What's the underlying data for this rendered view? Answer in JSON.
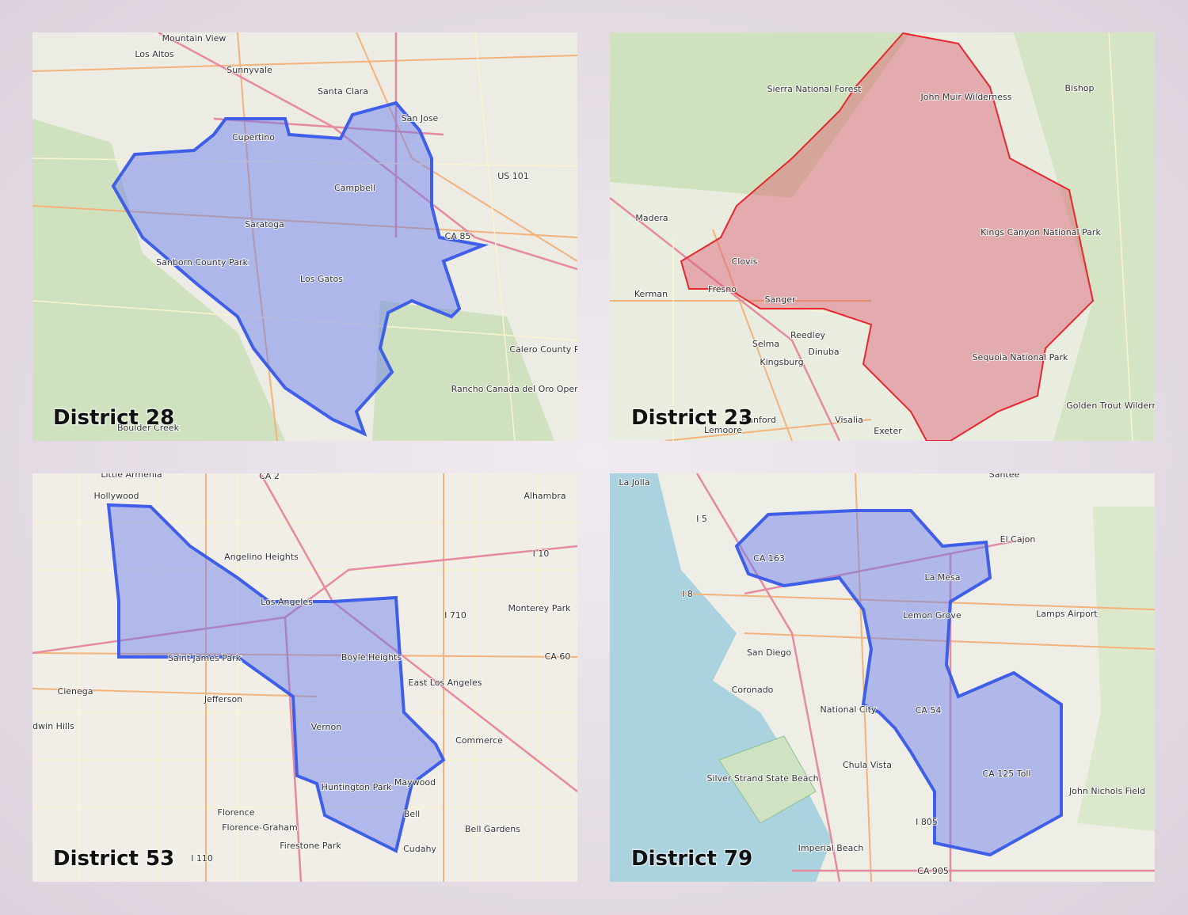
{
  "panels": [
    {
      "title": "District 28",
      "places": [
        "Mountain View",
        "Los Altos",
        "Sunnyvale",
        "Santa Clara",
        "San Jose",
        "Cupertino",
        "Campbell",
        "Saratoga",
        "Los Gatos",
        "Sanborn County Park",
        "Boulder Creek",
        "Calero County Park",
        "Rancho Canada del Oro Open Space Preserve",
        "US 101",
        "CA 85"
      ]
    },
    {
      "title": "District 23",
      "places": [
        "Sierra National Forest",
        "John Muir Wilderness",
        "Bishop",
        "Madera",
        "Clovis",
        "Fresno",
        "Kerman",
        "Sanger",
        "Reedley",
        "Selma",
        "Dinuba",
        "Kingsburg",
        "Kings Canyon National Park",
        "Sequoia National Park",
        "Golden Trout Wilderness",
        "Hanford",
        "Lemoore",
        "Visalia",
        "Exeter"
      ]
    },
    {
      "title": "District 53",
      "places": [
        "Little Armenia",
        "Hollywood",
        "Alhambra",
        "Angelino Heights",
        "Los Angeles",
        "Monterey Park",
        "Saint James Park",
        "Boyle Heights",
        "East Los Angeles",
        "Cienega",
        "Jefferson",
        "ldwin Hills",
        "Vernon",
        "Commerce",
        "Huntington Park",
        "Maywood",
        "Bell",
        "Bell Gardens",
        "Florence",
        "Florence-Graham",
        "Firestone Park",
        "Cudahy",
        "CA 2",
        "I 10",
        "I 710",
        "CA 60",
        "I 110"
      ]
    },
    {
      "title": "District 79",
      "places": [
        "La Jolla",
        "Santee",
        "El Cajon",
        "La Mesa",
        "Lemon Grove",
        "San Diego",
        "Coronado",
        "National City",
        "Chula Vista",
        "Silver Strand State Beach",
        "Lamps Airport",
        "John Nichols Field",
        "Imperial Beach",
        "CA 163",
        "CA 54",
        "CA 125 Toll",
        "I 805",
        "CA 905",
        "I 5",
        "I 8"
      ]
    }
  ]
}
